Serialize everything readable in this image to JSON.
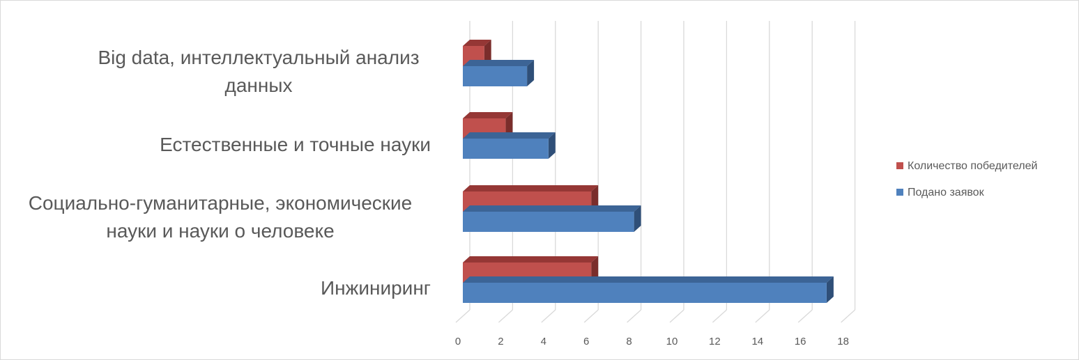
{
  "chart_data": {
    "type": "bar",
    "orientation": "horizontal",
    "style": "3d-clustered",
    "categories": [
      [
        "Инжиниринг"
      ],
      [
        "Социально-гуманитарные, экономические",
        "науки и науки о человеке"
      ],
      [
        "Естественные и точные науки"
      ],
      [
        "Big data, интеллектуальный анализ",
        "данных"
      ]
    ],
    "series": [
      {
        "name": "Подано заявок",
        "values": [
          17,
          8,
          4,
          3
        ],
        "color": "#4f81bd",
        "top_color": "#3c6496",
        "side_color": "#2f4f78"
      },
      {
        "name": "Количество победителей",
        "values": [
          6,
          6,
          2,
          1
        ],
        "color": "#c0504d",
        "top_color": "#953735",
        "side_color": "#7a2d2b"
      }
    ],
    "xlim": [
      0,
      18
    ],
    "ticks": [
      "0",
      "2",
      "4",
      "6",
      "8",
      "10",
      "12",
      "14",
      "16",
      "18"
    ],
    "grid": true,
    "legend": {
      "position": "right",
      "entries": [
        "Количество победителей",
        "Подано заявок"
      ]
    }
  }
}
